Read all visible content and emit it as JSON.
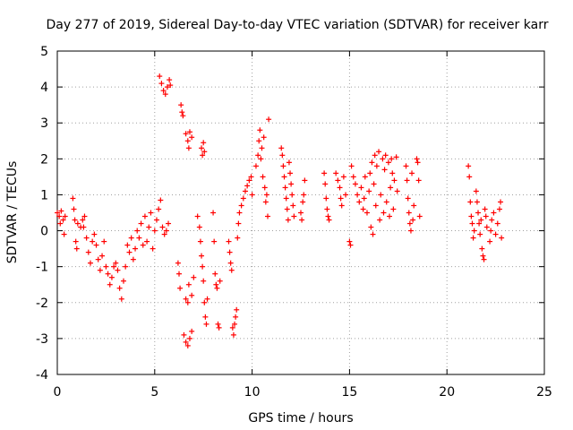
{
  "chart_data": {
    "type": "scatter",
    "title": "Day 277 of 2019, Sidereal Day-to-day VTEC variation (SDTVAR) for receiver karr",
    "xlabel": "GPS time / hours",
    "ylabel": "SDTVAR / TECUs",
    "xlim": [
      0,
      25
    ],
    "ylim": [
      -4,
      5
    ],
    "xticks": [
      "0",
      "5",
      "10",
      "15",
      "20",
      "25"
    ],
    "yticks": [
      "-4",
      "-3",
      "-2",
      "-1",
      "0",
      "1",
      "2",
      "3",
      "4",
      "5"
    ],
    "grid": true,
    "marker": "+",
    "color": "#ff0000",
    "series": [
      {
        "name": "SDTVAR",
        "points": [
          [
            0.0,
            0.5
          ],
          [
            0.1,
            0.4
          ],
          [
            0.15,
            0.2
          ],
          [
            0.2,
            0.55
          ],
          [
            0.3,
            0.3
          ],
          [
            0.35,
            -0.1
          ],
          [
            0.4,
            0.4
          ],
          [
            0.8,
            0.9
          ],
          [
            0.85,
            0.6
          ],
          [
            0.9,
            0.3
          ],
          [
            0.95,
            -0.3
          ],
          [
            1.0,
            -0.5
          ],
          [
            1.05,
            0.2
          ],
          [
            1.2,
            0.1
          ],
          [
            1.3,
            0.3
          ],
          [
            1.35,
            0.1
          ],
          [
            1.4,
            0.4
          ],
          [
            1.5,
            -0.2
          ],
          [
            1.6,
            -0.6
          ],
          [
            1.7,
            -0.9
          ],
          [
            1.8,
            -0.3
          ],
          [
            1.9,
            -0.1
          ],
          [
            2.0,
            -0.4
          ],
          [
            2.1,
            -0.8
          ],
          [
            2.2,
            -1.1
          ],
          [
            2.3,
            -0.7
          ],
          [
            2.4,
            -0.3
          ],
          [
            2.5,
            -1.0
          ],
          [
            2.6,
            -1.2
          ],
          [
            2.7,
            -1.5
          ],
          [
            2.8,
            -1.3
          ],
          [
            2.9,
            -1.0
          ],
          [
            3.0,
            -0.9
          ],
          [
            3.1,
            -1.1
          ],
          [
            3.2,
            -1.6
          ],
          [
            3.3,
            -1.9
          ],
          [
            3.4,
            -1.4
          ],
          [
            3.5,
            -1.0
          ],
          [
            3.6,
            -0.4
          ],
          [
            3.7,
            -0.6
          ],
          [
            3.8,
            -0.2
          ],
          [
            3.9,
            -0.8
          ],
          [
            4.0,
            -0.5
          ],
          [
            4.1,
            0.0
          ],
          [
            4.2,
            -0.2
          ],
          [
            4.3,
            0.2
          ],
          [
            4.4,
            -0.4
          ],
          [
            4.5,
            0.4
          ],
          [
            4.6,
            -0.3
          ],
          [
            4.7,
            0.1
          ],
          [
            4.8,
            0.5
          ],
          [
            4.9,
            -0.5
          ],
          [
            5.0,
            0.0
          ],
          [
            5.1,
            0.3
          ],
          [
            5.2,
            0.6
          ],
          [
            5.3,
            0.85
          ],
          [
            5.4,
            0.1
          ],
          [
            5.5,
            -0.1
          ],
          [
            5.6,
            0.0
          ],
          [
            5.7,
            0.2
          ],
          [
            5.25,
            4.3
          ],
          [
            5.35,
            4.1
          ],
          [
            5.45,
            3.9
          ],
          [
            5.55,
            3.8
          ],
          [
            5.65,
            4.0
          ],
          [
            5.75,
            4.2
          ],
          [
            5.8,
            4.05
          ],
          [
            6.2,
            -0.9
          ],
          [
            6.25,
            -1.2
          ],
          [
            6.3,
            -1.6
          ],
          [
            6.35,
            3.5
          ],
          [
            6.4,
            3.3
          ],
          [
            6.45,
            3.2
          ],
          [
            6.6,
            2.7
          ],
          [
            6.7,
            2.5
          ],
          [
            6.75,
            2.3
          ],
          [
            6.8,
            2.75
          ],
          [
            6.9,
            2.6
          ],
          [
            6.6,
            -1.9
          ],
          [
            6.7,
            -2.0
          ],
          [
            6.75,
            -1.5
          ],
          [
            6.9,
            -1.8
          ],
          [
            7.0,
            -1.3
          ],
          [
            6.5,
            -2.9
          ],
          [
            6.6,
            -3.1
          ],
          [
            6.7,
            -3.2
          ],
          [
            6.8,
            -3.0
          ],
          [
            6.9,
            -2.8
          ],
          [
            7.2,
            0.4
          ],
          [
            7.3,
            0.1
          ],
          [
            7.35,
            -0.3
          ],
          [
            7.4,
            -0.7
          ],
          [
            7.45,
            -1.0
          ],
          [
            7.5,
            -1.4
          ],
          [
            7.55,
            -2.0
          ],
          [
            7.6,
            -2.4
          ],
          [
            7.65,
            -2.6
          ],
          [
            7.7,
            -1.9
          ],
          [
            7.4,
            2.3
          ],
          [
            7.45,
            2.1
          ],
          [
            7.5,
            2.45
          ],
          [
            7.55,
            2.2
          ],
          [
            8.0,
            0.5
          ],
          [
            8.05,
            -0.3
          ],
          [
            8.1,
            -1.2
          ],
          [
            8.15,
            -1.5
          ],
          [
            8.2,
            -1.6
          ],
          [
            8.25,
            -2.6
          ],
          [
            8.3,
            -2.7
          ],
          [
            8.35,
            -1.4
          ],
          [
            8.8,
            -0.3
          ],
          [
            8.85,
            -0.6
          ],
          [
            8.9,
            -0.9
          ],
          [
            8.95,
            -1.1
          ],
          [
            9.0,
            -2.7
          ],
          [
            9.05,
            -2.9
          ],
          [
            9.1,
            -2.6
          ],
          [
            9.15,
            -2.4
          ],
          [
            9.2,
            -2.2
          ],
          [
            9.25,
            -0.2
          ],
          [
            9.3,
            0.2
          ],
          [
            9.35,
            0.5
          ],
          [
            9.45,
            0.7
          ],
          [
            9.55,
            0.9
          ],
          [
            9.65,
            1.1
          ],
          [
            9.75,
            1.25
          ],
          [
            9.85,
            1.4
          ],
          [
            9.95,
            1.5
          ],
          [
            10.0,
            1.0
          ],
          [
            10.2,
            1.8
          ],
          [
            10.3,
            2.1
          ],
          [
            10.35,
            2.5
          ],
          [
            10.4,
            2.8
          ],
          [
            10.45,
            2.0
          ],
          [
            10.5,
            2.3
          ],
          [
            10.55,
            1.5
          ],
          [
            10.6,
            2.6
          ],
          [
            10.65,
            1.2
          ],
          [
            10.7,
            0.8
          ],
          [
            10.75,
            1.0
          ],
          [
            10.8,
            0.4
          ],
          [
            10.85,
            3.1
          ],
          [
            11.5,
            2.3
          ],
          [
            11.55,
            2.1
          ],
          [
            11.6,
            1.8
          ],
          [
            11.65,
            1.5
          ],
          [
            11.7,
            1.2
          ],
          [
            11.75,
            0.9
          ],
          [
            11.8,
            0.6
          ],
          [
            11.85,
            0.3
          ],
          [
            11.9,
            1.9
          ],
          [
            11.95,
            1.6
          ],
          [
            12.0,
            1.3
          ],
          [
            12.05,
            1.0
          ],
          [
            12.1,
            0.7
          ],
          [
            12.15,
            0.4
          ],
          [
            12.5,
            0.5
          ],
          [
            12.55,
            0.3
          ],
          [
            12.6,
            0.8
          ],
          [
            12.65,
            1.0
          ],
          [
            12.7,
            1.4
          ],
          [
            13.7,
            1.6
          ],
          [
            13.75,
            1.3
          ],
          [
            13.8,
            0.9
          ],
          [
            13.85,
            0.6
          ],
          [
            13.9,
            0.4
          ],
          [
            13.95,
            0.3
          ],
          [
            14.3,
            1.6
          ],
          [
            14.4,
            1.4
          ],
          [
            14.5,
            1.2
          ],
          [
            14.55,
            0.9
          ],
          [
            14.6,
            0.7
          ],
          [
            14.7,
            1.5
          ],
          [
            14.8,
            1.0
          ],
          [
            15.0,
            -0.3
          ],
          [
            15.05,
            -0.4
          ],
          [
            15.1,
            1.8
          ],
          [
            15.2,
            1.5
          ],
          [
            15.3,
            1.3
          ],
          [
            15.4,
            1.0
          ],
          [
            15.5,
            0.8
          ],
          [
            15.6,
            1.2
          ],
          [
            15.7,
            0.6
          ],
          [
            15.75,
            0.9
          ],
          [
            15.8,
            1.5
          ],
          [
            15.9,
            0.5
          ],
          [
            16.0,
            1.1
          ],
          [
            16.05,
            1.6
          ],
          [
            16.1,
            0.1
          ],
          [
            16.15,
            1.9
          ],
          [
            16.2,
            -0.1
          ],
          [
            16.25,
            1.3
          ],
          [
            16.3,
            2.1
          ],
          [
            16.35,
            0.7
          ],
          [
            16.4,
            1.8
          ],
          [
            16.5,
            2.2
          ],
          [
            16.55,
            0.3
          ],
          [
            16.6,
            1.0
          ],
          [
            16.7,
            2.0
          ],
          [
            16.75,
            0.5
          ],
          [
            16.8,
            1.7
          ],
          [
            16.85,
            2.1
          ],
          [
            16.9,
            0.8
          ],
          [
            17.0,
            1.9
          ],
          [
            17.05,
            0.4
          ],
          [
            17.1,
            1.2
          ],
          [
            17.15,
            2.0
          ],
          [
            17.2,
            1.6
          ],
          [
            17.25,
            0.6
          ],
          [
            17.3,
            1.4
          ],
          [
            17.4,
            2.05
          ],
          [
            17.45,
            1.1
          ],
          [
            17.9,
            1.8
          ],
          [
            17.95,
            1.4
          ],
          [
            18.0,
            0.9
          ],
          [
            18.05,
            0.5
          ],
          [
            18.1,
            0.2
          ],
          [
            18.15,
            0.0
          ],
          [
            18.2,
            1.6
          ],
          [
            18.25,
            0.3
          ],
          [
            18.3,
            0.7
          ],
          [
            18.45,
            2.0
          ],
          [
            18.5,
            1.9
          ],
          [
            18.55,
            1.4
          ],
          [
            18.6,
            0.4
          ],
          [
            21.1,
            1.8
          ],
          [
            21.15,
            1.5
          ],
          [
            21.2,
            0.8
          ],
          [
            21.25,
            0.4
          ],
          [
            21.3,
            0.2
          ],
          [
            21.35,
            -0.2
          ],
          [
            21.4,
            0.0
          ],
          [
            21.5,
            1.1
          ],
          [
            21.55,
            0.8
          ],
          [
            21.6,
            0.5
          ],
          [
            21.65,
            0.2
          ],
          [
            21.7,
            -0.1
          ],
          [
            21.75,
            0.3
          ],
          [
            21.8,
            -0.5
          ],
          [
            21.85,
            -0.7
          ],
          [
            21.9,
            -0.8
          ],
          [
            21.95,
            0.6
          ],
          [
            22.0,
            0.4
          ],
          [
            22.05,
            0.1
          ],
          [
            22.2,
            -0.3
          ],
          [
            22.25,
            0.0
          ],
          [
            22.3,
            0.3
          ],
          [
            22.4,
            0.5
          ],
          [
            22.5,
            -0.1
          ],
          [
            22.6,
            0.2
          ],
          [
            22.7,
            0.6
          ],
          [
            22.75,
            0.8
          ],
          [
            22.8,
            -0.2
          ]
        ]
      }
    ]
  }
}
